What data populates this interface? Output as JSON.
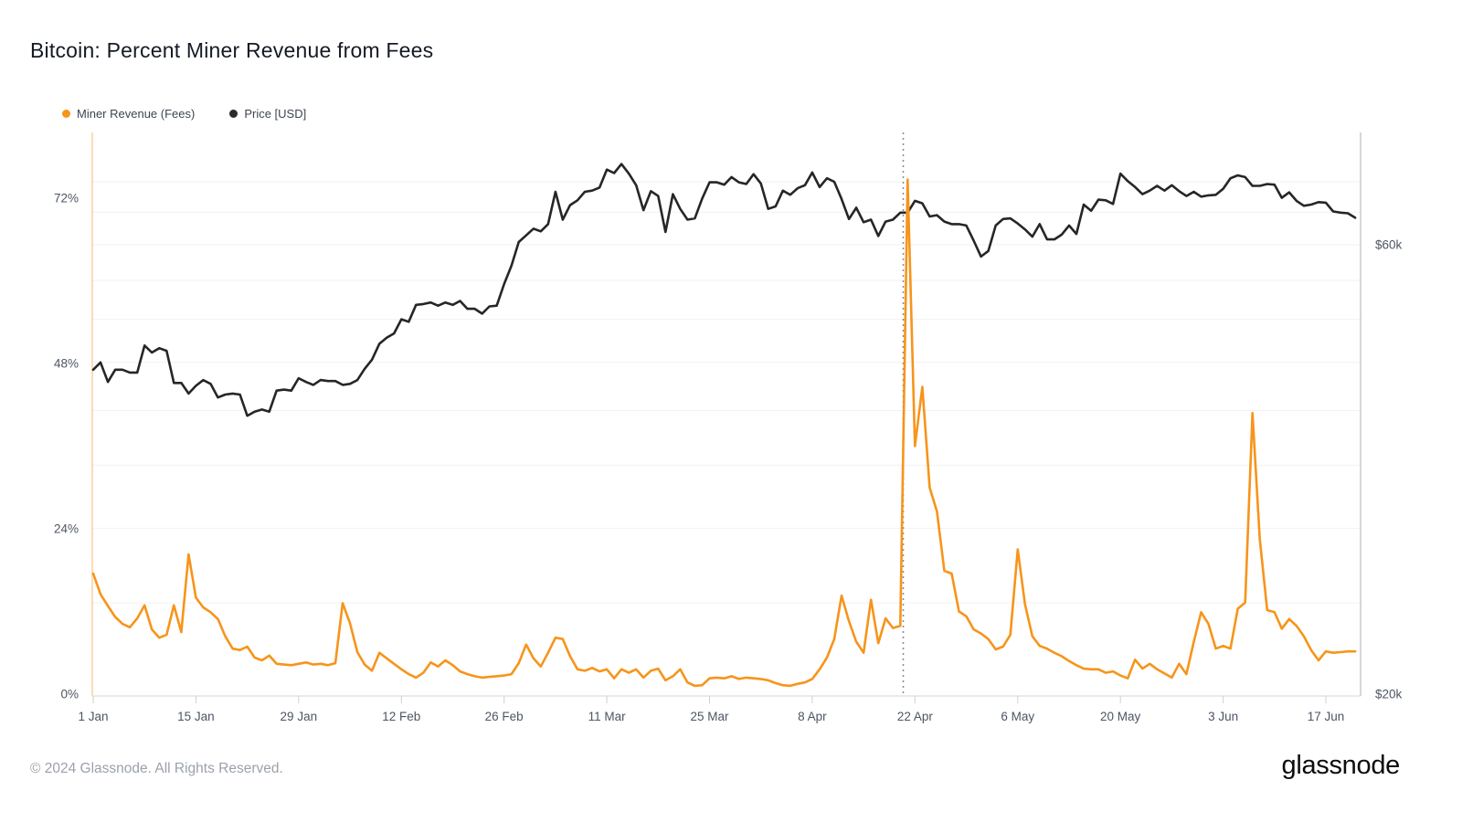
{
  "title": "Bitcoin: Percent Miner Revenue from Fees",
  "legend": [
    {
      "label": "Miner Revenue (Fees)",
      "color": "#f7941a"
    },
    {
      "label": "Price [USD]",
      "color": "#2b2b2b"
    }
  ],
  "footer": {
    "copyright": "© 2024 Glassnode. All Rights Reserved.",
    "brand": "glassnode"
  },
  "chart_data": {
    "type": "line",
    "title": "Bitcoin: Percent Miner Revenue from Fees",
    "x_start_label": "1 Jan",
    "x_tick_days": [
      0,
      14,
      28,
      42,
      56,
      70,
      84,
      98,
      112,
      126,
      140,
      154,
      168
    ],
    "x_tick_labels": [
      "1 Jan",
      "15 Jan",
      "29 Jan",
      "12 Feb",
      "26 Feb",
      "11 Mar",
      "25 Mar",
      "8 Apr",
      "22 Apr",
      "6 May",
      "20 May",
      "3 Jun",
      "17 Jun"
    ],
    "left_axis": {
      "unit": "%",
      "tick_values": [
        72,
        48,
        24,
        0
      ],
      "tick_labels": [
        "72%",
        "48%",
        "24%",
        "0%"
      ],
      "scale": "linear"
    },
    "right_axis": {
      "unit": "$k",
      "tick_values": [
        60,
        20
      ],
      "tick_labels": [
        "$60k",
        "$20k"
      ],
      "scale": "log"
    },
    "gridline_price_levels": [
      25,
      30,
      35,
      40,
      45,
      50,
      55,
      60,
      65,
      70
    ],
    "annotations": {
      "halving_dotted_line_day": 110.4
    },
    "legend_position": "top-left",
    "grid": true,
    "series": [
      {
        "name": "Price [USD]",
        "axis": "right",
        "color": "#262626",
        "values": [
          44.2,
          45.0,
          42.9,
          44.2,
          44.2,
          43.9,
          43.9,
          46.9,
          46.1,
          46.6,
          46.3,
          42.8,
          42.8,
          41.7,
          42.5,
          43.1,
          42.7,
          41.3,
          41.6,
          41.7,
          41.6,
          39.5,
          39.9,
          40.1,
          39.9,
          42.0,
          42.1,
          42.0,
          43.3,
          42.9,
          42.6,
          43.1,
          43.0,
          43.0,
          42.6,
          42.7,
          43.1,
          44.3,
          45.3,
          47.1,
          47.8,
          48.3,
          50.0,
          49.7,
          51.8,
          51.9,
          52.1,
          51.7,
          52.1,
          51.8,
          52.3,
          51.3,
          51.3,
          50.7,
          51.6,
          51.7,
          54.5,
          57.0,
          60.4,
          61.4,
          62.4,
          62.0,
          63.1,
          68.3,
          63.8,
          66.1,
          66.9,
          68.3,
          68.5,
          69.0,
          72.1,
          71.5,
          73.1,
          71.4,
          69.4,
          65.3,
          68.4,
          67.6,
          61.9,
          67.9,
          65.5,
          63.8,
          64.0,
          67.2,
          69.9,
          69.9,
          69.5,
          70.8,
          69.9,
          69.6,
          71.3,
          69.7,
          65.5,
          65.9,
          68.5,
          67.8,
          68.9,
          69.4,
          71.6,
          69.1,
          70.6,
          70.0,
          67.1,
          63.9,
          65.7,
          63.4,
          63.8,
          61.3,
          63.5,
          63.8,
          64.9,
          64.9,
          66.8,
          66.4,
          64.3,
          64.5,
          63.5,
          63.1,
          63.1,
          62.9,
          60.6,
          58.3,
          59.1,
          62.9,
          63.9,
          64.0,
          63.2,
          62.3,
          61.2,
          63.1,
          60.8,
          60.8,
          61.5,
          62.9,
          61.6,
          66.2,
          65.2,
          67.0,
          66.9,
          66.3,
          71.4,
          70.1,
          69.1,
          67.9,
          68.5,
          69.3,
          68.5,
          69.4,
          68.4,
          67.6,
          68.3,
          67.5,
          67.7,
          67.8,
          68.8,
          70.6,
          71.1,
          70.8,
          69.3,
          69.3,
          69.6,
          69.5,
          67.3,
          68.2,
          66.8,
          66.0,
          66.2,
          66.6,
          66.5,
          65.1,
          64.9,
          64.8,
          64.1
        ]
      },
      {
        "name": "Miner Revenue (Fees)",
        "axis": "left",
        "color": "#f7941a",
        "values": [
          17.5,
          14.5,
          12.8,
          11.2,
          10.2,
          9.7,
          11.0,
          12.9,
          9.4,
          8.2,
          8.6,
          12.9,
          9.0,
          20.3,
          14.0,
          12.6,
          11.9,
          10.9,
          8.4,
          6.6,
          6.4,
          6.9,
          5.3,
          4.9,
          5.6,
          4.4,
          4.3,
          4.2,
          4.4,
          4.6,
          4.3,
          4.4,
          4.2,
          4.5,
          13.2,
          10.3,
          6.1,
          4.3,
          3.4,
          6.0,
          5.2,
          4.4,
          3.6,
          2.9,
          2.4,
          3.1,
          4.6,
          4.0,
          4.9,
          4.2,
          3.3,
          2.9,
          2.6,
          2.4,
          2.5,
          2.6,
          2.7,
          2.9,
          4.5,
          7.2,
          5.2,
          4.0,
          6.0,
          8.2,
          8.0,
          5.5,
          3.6,
          3.4,
          3.8,
          3.3,
          3.6,
          2.3,
          3.6,
          3.1,
          3.6,
          2.4,
          3.4,
          3.7,
          2.0,
          2.6,
          3.6,
          1.7,
          1.2,
          1.3,
          2.3,
          2.4,
          2.3,
          2.6,
          2.2,
          2.4,
          2.3,
          2.2,
          2.0,
          1.6,
          1.3,
          1.2,
          1.5,
          1.7,
          2.2,
          3.6,
          5.3,
          8.0,
          14.3,
          10.6,
          7.6,
          6.0,
          13.7,
          7.4,
          11.0,
          9.6,
          9.9,
          74.7,
          36.0,
          44.6,
          30.0,
          26.5,
          17.9,
          17.5,
          12.0,
          11.3,
          9.4,
          8.8,
          8.0,
          6.5,
          6.9,
          8.6,
          21.0,
          13.0,
          8.4,
          7.0,
          6.6,
          6.0,
          5.5,
          4.8,
          4.2,
          3.7,
          3.6,
          3.6,
          3.1,
          3.3,
          2.7,
          2.3,
          5.0,
          3.7,
          4.4,
          3.6,
          3.0,
          2.4,
          4.4,
          2.9,
          7.6,
          11.9,
          10.2,
          6.6,
          7.0,
          6.6,
          12.4,
          13.3,
          40.8,
          22.5,
          12.2,
          11.9,
          9.5,
          10.9,
          9.9,
          8.4,
          6.4,
          4.9,
          6.2,
          6.0,
          6.1,
          6.2,
          6.2
        ]
      }
    ]
  }
}
